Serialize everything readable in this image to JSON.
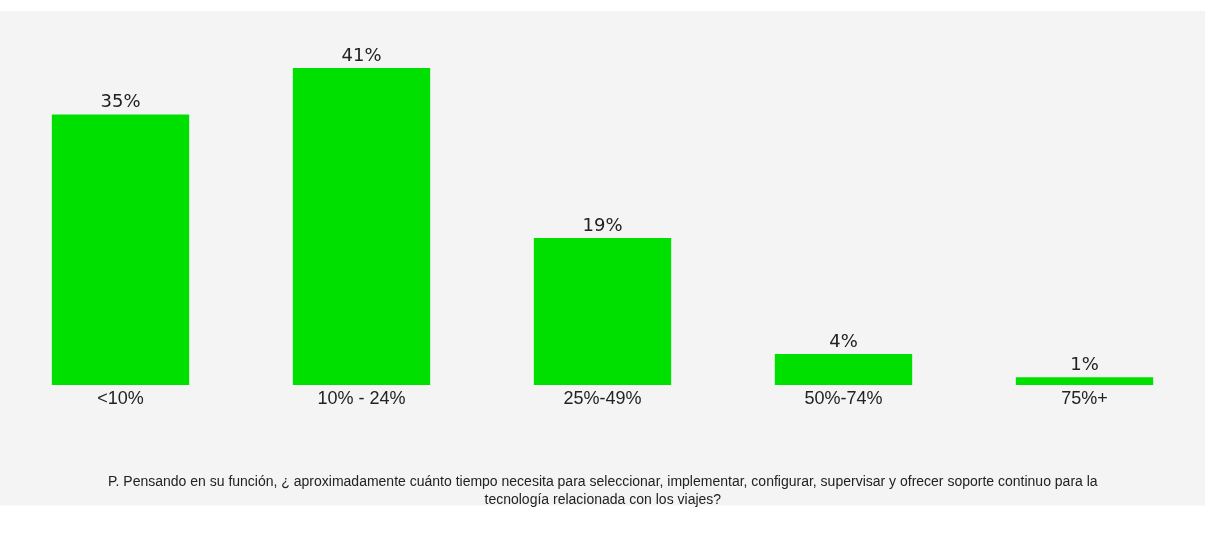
{
  "chart_data": {
    "type": "bar",
    "categories": [
      "<10%",
      "10% - 24%",
      "25%-49%",
      "50%-74%",
      "75%+"
    ],
    "values": [
      35,
      41,
      19,
      4,
      1
    ],
    "value_labels": [
      "35%",
      "41%",
      "19%",
      "4%",
      "1%"
    ],
    "color": "#00e000",
    "annotations": [
      "P. Pensando en su función, ¿ aproximadamente cuánto tiempo necesita para seleccionar, implementar, configurar, supervisar y ofrecer soporte continuo para la tecnología relacionada con los viajes?"
    ]
  }
}
